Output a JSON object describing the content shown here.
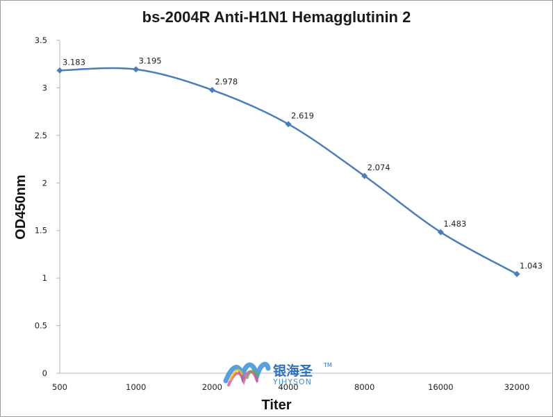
{
  "chart_data": {
    "type": "line",
    "title": "bs-2004R Anti-H1N1 Hemagglutinin 2",
    "xlabel": "Titer",
    "ylabel": "OD450nm",
    "categories": [
      "500",
      "1000",
      "2000",
      "4000",
      "8000",
      "16000",
      "32000"
    ],
    "series": [
      {
        "values": [
          3.183,
          3.195,
          2.978,
          2.619,
          2.074,
          1.483,
          1.043
        ]
      }
    ],
    "data_labels": [
      "3.183",
      "3.195",
      "2.978",
      "2.619",
      "2.074",
      "1.483",
      "1.043"
    ],
    "y_ticks": [
      "0",
      "0.5",
      "1",
      "1.5",
      "2",
      "2.5",
      "3",
      "3.5"
    ],
    "ylim": [
      0,
      3.5
    ],
    "grid": false,
    "legend": "none",
    "line_color": "#4a7ebb",
    "axis_color": "#b5b5b5"
  },
  "watermark": {
    "text_cn": "银海圣",
    "text_en": "YIHYSON",
    "trademark": "TM",
    "icon": "yihyson-logo"
  }
}
